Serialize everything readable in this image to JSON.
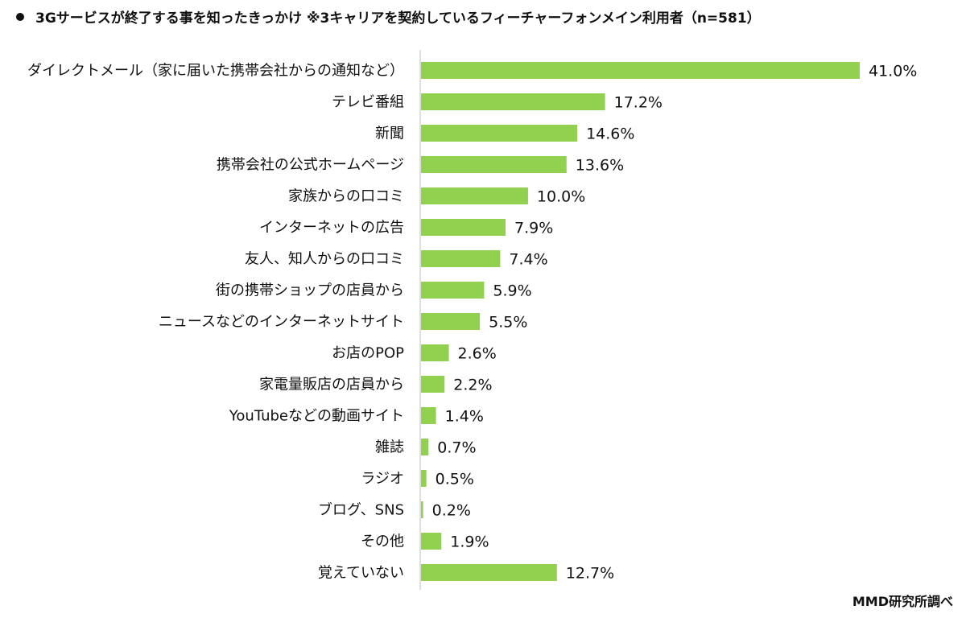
{
  "title": "3Gサービスが終了する事を知ったきっかけ ※3キャリアを契約しているフィーチャーフォンメイン利用者（n=581）",
  "source": "MMD研究所調べ",
  "colors": {
    "bar": "#92d050",
    "axis": "#bfbfbf"
  },
  "chart_data": {
    "type": "bar",
    "orientation": "horizontal",
    "title": "3Gサービスが終了する事を知ったきっかけ ※3キャリアを契約しているフィーチャーフォンメイン利用者（n=581）",
    "xlabel": "",
    "ylabel": "",
    "unit": "%",
    "xlim": [
      0,
      41
    ],
    "grid": false,
    "categories": [
      "ダイレクトメール（家に届いた携帯会社からの通知など）",
      "テレビ番組",
      "新聞",
      "携帯会社の公式ホームページ",
      "家族からの口コミ",
      "インターネットの広告",
      "友人、知人からの口コミ",
      "街の携帯ショップの店員から",
      "ニュースなどのインターネットサイト",
      "お店のPOP",
      "家電量販店の店員から",
      "YouTubeなどの動画サイト",
      "雑誌",
      "ラジオ",
      "ブログ、SNS",
      "その他",
      "覚えていない"
    ],
    "values": [
      41.0,
      17.2,
      14.6,
      13.6,
      10.0,
      7.9,
      7.4,
      5.9,
      5.5,
      2.6,
      2.2,
      1.4,
      0.7,
      0.5,
      0.2,
      1.9,
      12.7
    ],
    "value_labels": [
      "41.0%",
      "17.2%",
      "14.6%",
      "13.6%",
      "10.0%",
      "7.9%",
      "7.4%",
      "5.9%",
      "5.5%",
      "2.6%",
      "2.2%",
      "1.4%",
      "0.7%",
      "0.5%",
      "0.2%",
      "1.9%",
      "12.7%"
    ]
  }
}
